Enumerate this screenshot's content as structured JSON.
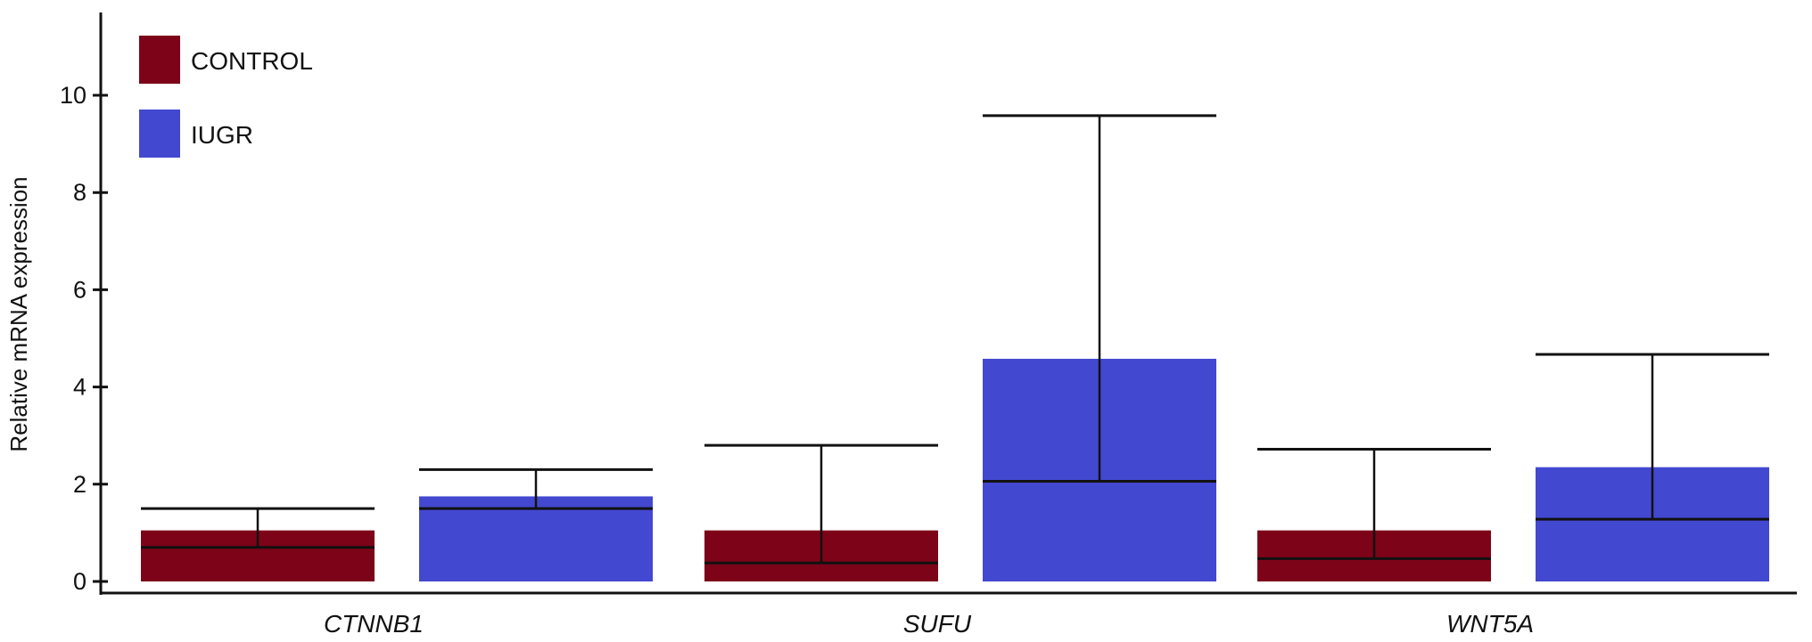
{
  "chart_data": {
    "type": "bar",
    "title": "",
    "xlabel": "",
    "ylabel": "Relative mRNA expression",
    "ylim": [
      0,
      11.5
    ],
    "yticks": [
      0,
      2,
      4,
      6,
      8,
      10
    ],
    "grid": false,
    "legend_position": "top-left",
    "categories": [
      "CTNNB1",
      "SUFU",
      "WNT5A"
    ],
    "series": [
      {
        "name": "CONTROL",
        "color": "#7d0319",
        "values": [
          1.05,
          1.05,
          1.05
        ],
        "error_low": [
          0.7,
          0.38,
          0.47
        ],
        "error_high": [
          1.5,
          2.8,
          2.72
        ]
      },
      {
        "name": "IUGR",
        "color": "#4248d0",
        "values": [
          1.75,
          4.58,
          2.35
        ],
        "error_low": [
          1.5,
          2.06,
          1.28
        ],
        "error_high": [
          2.3,
          9.58,
          4.67
        ]
      }
    ]
  }
}
